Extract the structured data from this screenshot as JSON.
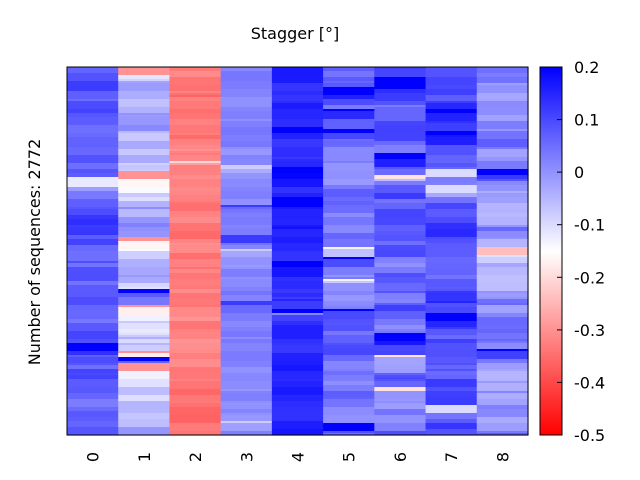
{
  "chart_data": {
    "type": "heatmap",
    "title": "Stagger [°]",
    "ylabel": "Number of sequences: 2772",
    "xlabel": "",
    "categories": [
      "0",
      "1",
      "2",
      "3",
      "4",
      "5",
      "6",
      "7",
      "8"
    ],
    "colorbar": {
      "range": [
        -0.5,
        0.2
      ],
      "ticks": [
        "0.2",
        "0.1",
        "0",
        "-0.1",
        "-0.2",
        "-0.3",
        "-0.4",
        "-0.5"
      ],
      "tick_values": [
        0.2,
        0.1,
        0,
        -0.1,
        -0.2,
        -0.3,
        -0.4,
        -0.5
      ],
      "colors": {
        "high": "#0000ff",
        "mid": "#ffffff",
        "low": "#ff0000"
      },
      "mid_value": -0.15
    },
    "rows_estimated": 2772,
    "column_means": [
      0.08,
      -0.05,
      -0.33,
      0.02,
      0.14,
      0.04,
      0.06,
      0.1,
      0.01
    ],
    "column_spread": [
      0.08,
      0.1,
      0.05,
      0.04,
      0.05,
      0.07,
      0.1,
      0.08,
      0.1
    ]
  }
}
